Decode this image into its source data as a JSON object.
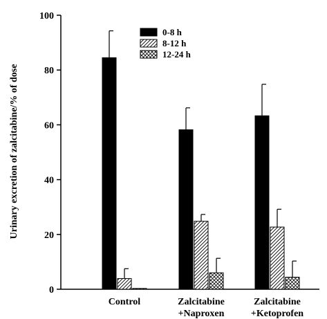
{
  "chart_data": {
    "type": "bar",
    "title": "",
    "xlabel": "",
    "ylabel": "Urinary excretion of zalcitabine/% of dose",
    "ylim": [
      0,
      100
    ],
    "yticks": [
      0,
      20,
      40,
      60,
      80,
      100
    ],
    "categories": [
      [
        "Control"
      ],
      [
        "Zalcitabine",
        "+Naproxen"
      ],
      [
        "Zalcitabine",
        "+Ketoprofen"
      ]
    ],
    "legend_position": "top-center",
    "series": [
      {
        "name": "0-8 h",
        "pattern": "solid",
        "values": [
          84.5,
          58.2,
          63.3
        ],
        "errors": [
          9.8,
          8.0,
          11.5
        ]
      },
      {
        "name": "8-12 h",
        "pattern": "diagonal-hatch",
        "values": [
          3.9,
          24.8,
          22.7
        ],
        "errors": [
          3.6,
          2.5,
          6.5
        ]
      },
      {
        "name": "12-24 h",
        "pattern": "crosshatch",
        "values": [
          0.3,
          6.0,
          4.4
        ],
        "errors": [
          0,
          5.3,
          5.9
        ]
      }
    ]
  }
}
